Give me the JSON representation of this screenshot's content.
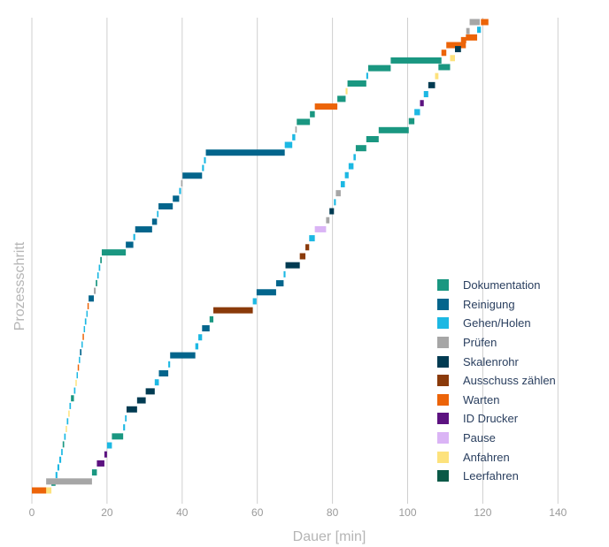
{
  "chart_data": {
    "type": "gantt",
    "xlabel": "Dauer [min]",
    "ylabel": "Prozessschritt",
    "xlim": [
      0,
      140
    ],
    "xticks": [
      0,
      20,
      40,
      60,
      80,
      100,
      120,
      140
    ],
    "grid": true,
    "legend_position": "right",
    "categories": [
      {
        "key": "dok",
        "name": "Dokumentation",
        "color": "#1a9781"
      },
      {
        "key": "rei",
        "name": "Reinigung",
        "color": "#03658c"
      },
      {
        "key": "geh",
        "name": "Gehen/Holen",
        "color": "#1cb8e3"
      },
      {
        "key": "pru",
        "name": "Prüfen",
        "color": "#a6a6a6"
      },
      {
        "key": "ska",
        "name": "Skalenrohr",
        "color": "#013b52"
      },
      {
        "key": "aus",
        "name": "Ausschuss zählen",
        "color": "#8a3a0a"
      },
      {
        "key": "war",
        "name": "Warten",
        "color": "#ec6409"
      },
      {
        "key": "idd",
        "name": "ID Drucker",
        "color": "#5c1280"
      },
      {
        "key": "pau",
        "name": "Pause",
        "color": "#dab4f5"
      },
      {
        "key": "anf",
        "name": "Anfahren",
        "color": "#fde27c"
      },
      {
        "key": "lee",
        "name": "Leerfahren",
        "color": "#0a5947"
      }
    ],
    "series": [
      {
        "steps": [
          [
            "anf",
            0.3,
            5.2
          ],
          [
            "dok",
            5.2,
            6.3
          ],
          [
            "geh",
            6.3,
            6.8
          ],
          [
            "geh",
            6.8,
            7.3
          ],
          [
            "geh",
            7.3,
            7.8
          ],
          [
            "geh",
            7.8,
            8.2
          ],
          [
            "dok",
            8.2,
            8.6
          ],
          [
            "geh",
            8.6,
            9.0
          ],
          [
            "anf",
            9.0,
            9.3
          ],
          [
            "geh",
            9.3,
            9.7
          ],
          [
            "anf",
            9.7,
            10.0
          ],
          [
            "geh",
            10.0,
            10.4
          ],
          [
            "dok",
            10.4,
            11.2
          ],
          [
            "geh",
            11.2,
            11.6
          ],
          [
            "anf",
            11.6,
            11.9
          ],
          [
            "geh",
            11.9,
            12.2
          ],
          [
            "war",
            12.2,
            12.5
          ],
          [
            "geh",
            12.5,
            12.8
          ],
          [
            "rei",
            12.8,
            13.2
          ],
          [
            "geh",
            13.2,
            13.5
          ],
          [
            "war",
            13.5,
            13.8
          ],
          [
            "geh",
            13.8,
            14.1
          ],
          [
            "geh",
            14.1,
            14.5
          ],
          [
            "geh",
            14.5,
            14.8
          ],
          [
            "war",
            14.8,
            15.1
          ],
          [
            "rei",
            15.1,
            16.5
          ],
          [
            "pru",
            16.5,
            17.0
          ],
          [
            "dok",
            17.0,
            17.4
          ],
          [
            "geh",
            17.4,
            17.8
          ],
          [
            "geh",
            17.8,
            18.2
          ],
          [
            "dok",
            18.2,
            18.6
          ],
          [
            "dok",
            18.6,
            25.0
          ],
          [
            "rei",
            25.0,
            27.0
          ],
          [
            "geh",
            27.0,
            27.5
          ],
          [
            "rei",
            27.5,
            32.0
          ],
          [
            "rei",
            32.0,
            33.3
          ],
          [
            "geh",
            33.3,
            33.7
          ],
          [
            "rei",
            33.7,
            37.5
          ],
          [
            "rei",
            37.5,
            39.2
          ],
          [
            "geh",
            39.2,
            39.7
          ],
          [
            "pru",
            39.7,
            40.1
          ],
          [
            "rei",
            40.1,
            45.3
          ],
          [
            "geh",
            45.3,
            45.8
          ],
          [
            "geh",
            45.8,
            46.3
          ],
          [
            "rei",
            46.3,
            67.3
          ],
          [
            "geh",
            67.3,
            69.3
          ],
          [
            "geh",
            69.3,
            70.1
          ],
          [
            "pru",
            70.1,
            70.5
          ],
          [
            "dok",
            70.5,
            74.0
          ],
          [
            "dok",
            74.0,
            75.3
          ],
          [
            "war",
            75.3,
            81.3
          ],
          [
            "dok",
            81.3,
            83.5
          ],
          [
            "anf",
            83.5,
            84.0
          ],
          [
            "dok",
            84.0,
            89.0
          ],
          [
            "geh",
            89.0,
            89.5
          ],
          [
            "dok",
            89.5,
            95.5
          ],
          [
            "dok",
            95.5,
            109.0
          ],
          [
            "war",
            109.0,
            110.3
          ],
          [
            "war",
            110.3,
            115.5
          ],
          [
            "war",
            115.5,
            118.5
          ],
          [
            "geh",
            118.5,
            119.5
          ],
          [
            "war",
            119.5,
            121.5
          ]
        ]
      },
      {
        "steps": [
          [
            "war",
            0.0,
            3.8
          ],
          [
            "pru",
            3.8,
            16.0
          ],
          [
            "dok",
            16.0,
            17.3
          ],
          [
            "idd",
            17.3,
            19.3
          ],
          [
            "idd",
            19.3,
            20.0
          ],
          [
            "geh",
            20.0,
            21.3
          ],
          [
            "dok",
            21.3,
            24.3
          ],
          [
            "geh",
            24.3,
            24.8
          ],
          [
            "geh",
            24.8,
            25.2
          ],
          [
            "ska",
            25.2,
            28.0
          ],
          [
            "ska",
            28.0,
            30.3
          ],
          [
            "ska",
            30.3,
            32.7
          ],
          [
            "geh",
            32.7,
            33.8
          ],
          [
            "rei",
            33.8,
            36.3
          ],
          [
            "geh",
            36.3,
            36.8
          ],
          [
            "rei",
            36.8,
            43.5
          ],
          [
            "geh",
            43.5,
            44.3
          ],
          [
            "geh",
            44.3,
            45.3
          ],
          [
            "rei",
            45.3,
            47.3
          ],
          [
            "dok",
            47.3,
            48.3
          ],
          [
            "aus",
            48.3,
            58.8
          ],
          [
            "geh",
            58.8,
            59.8
          ],
          [
            "rei",
            59.8,
            65.0
          ],
          [
            "rei",
            65.0,
            67.0
          ],
          [
            "geh",
            67.0,
            67.5
          ],
          [
            "ska",
            67.5,
            71.3
          ],
          [
            "aus",
            71.3,
            72.8
          ],
          [
            "aus",
            72.8,
            73.8
          ],
          [
            "geh",
            73.8,
            75.3
          ],
          [
            "pau",
            75.3,
            78.3
          ],
          [
            "pru",
            78.3,
            79.2
          ],
          [
            "ska",
            79.2,
            80.4
          ],
          [
            "geh",
            80.4,
            80.9
          ],
          [
            "pru",
            80.9,
            82.2
          ],
          [
            "geh",
            82.2,
            83.3
          ],
          [
            "geh",
            83.3,
            84.3
          ],
          [
            "geh",
            84.3,
            85.6
          ],
          [
            "geh",
            85.6,
            86.2
          ],
          [
            "dok",
            86.2,
            89.0
          ],
          [
            "dok",
            89.0,
            92.3
          ],
          [
            "dok",
            92.3,
            100.3
          ],
          [
            "dok",
            100.3,
            101.8
          ],
          [
            "geh",
            101.8,
            103.3
          ],
          [
            "idd",
            103.3,
            104.3
          ],
          [
            "geh",
            104.3,
            105.5
          ],
          [
            "ska",
            105.5,
            107.3
          ],
          [
            "anf",
            107.3,
            108.2
          ],
          [
            "dok",
            108.2,
            111.3
          ],
          [
            "anf",
            111.3,
            112.6
          ],
          [
            "ska",
            112.6,
            114.2
          ],
          [
            "war",
            114.2,
            115.6
          ],
          [
            "pru",
            115.6,
            116.5
          ],
          [
            "pru",
            116.5,
            119.2
          ]
        ]
      }
    ]
  }
}
